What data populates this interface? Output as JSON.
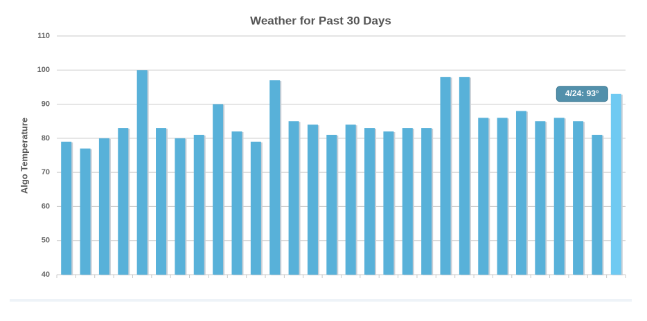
{
  "chart_data": {
    "type": "bar",
    "title": "Weather for Past 30 Days",
    "y_label": "Algo Temperature",
    "values": [
      79,
      77,
      80,
      83,
      100,
      83,
      80,
      81,
      90,
      82,
      79,
      97,
      85,
      84,
      81,
      84,
      83,
      82,
      83,
      83,
      98,
      98,
      86,
      86,
      88,
      85,
      86,
      85,
      81,
      93
    ],
    "colors": [
      "#58b1d9",
      "#58b1d9",
      "#58b1d9",
      "#58b1d9",
      "#58b1d9",
      "#58b1d9",
      "#58b1d9",
      "#58b1d9",
      "#58b1d9",
      "#58b1d9",
      "#58b1d9",
      "#58b1d9",
      "#58b1d9",
      "#58b1d9",
      "#58b1d9",
      "#58b1d9",
      "#58b1d9",
      "#58b1d9",
      "#58b1d9",
      "#58b1d9",
      "#58b1d9",
      "#58b1d9",
      "#58b1d9",
      "#58b1d9",
      "#58b1d9",
      "#58b1d9",
      "#58b1d9",
      "#58b1d9",
      "#58b1d9",
      "#6fcaf2"
    ],
    "ylim": [
      40,
      110
    ],
    "yticks": [
      40,
      50,
      60,
      70,
      80,
      90,
      100,
      110
    ],
    "grid": true,
    "tooltip": "4/24: 93°"
  }
}
